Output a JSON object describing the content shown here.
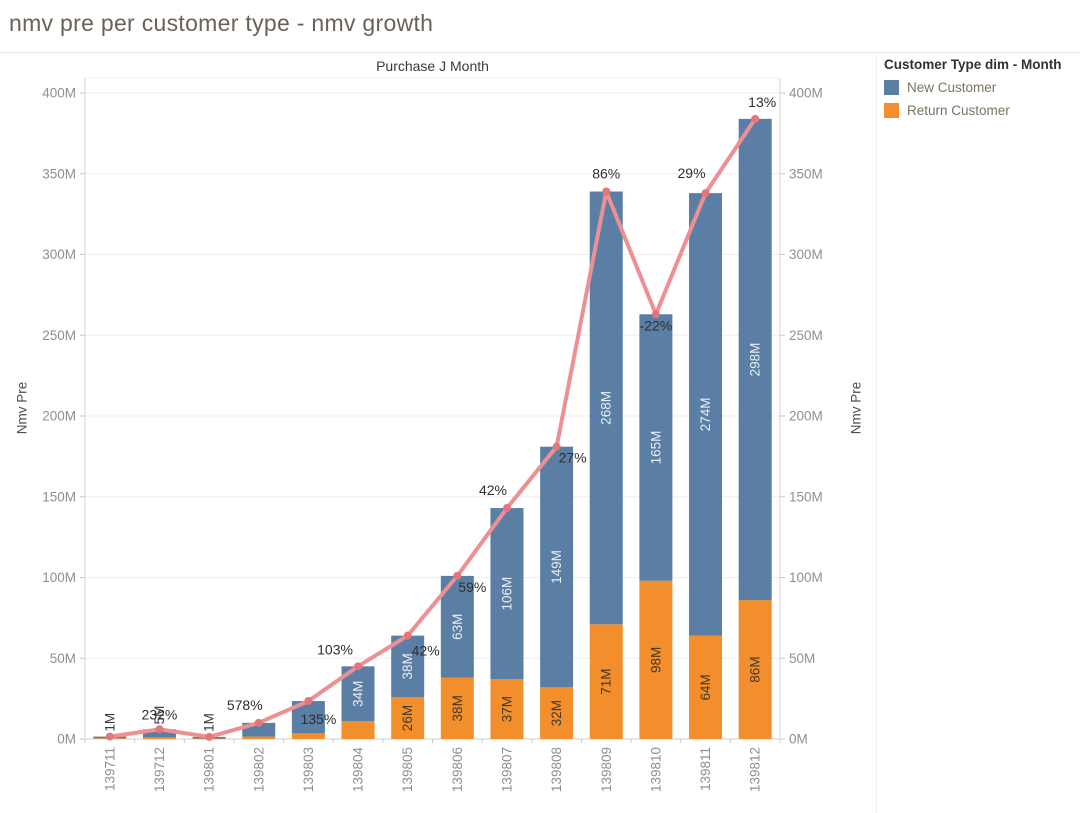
{
  "page": {
    "title": "nmv pre per customer type - nmv growth"
  },
  "legend": {
    "title": "Customer Type dim - Month",
    "items": [
      {
        "label": "New Customer",
        "color": "#5a7ea4"
      },
      {
        "label": "Return Customer",
        "color": "#f28e2b"
      }
    ]
  },
  "chart_data": {
    "type": "stacked-bar+line",
    "title": "Purchase J Month",
    "ylabel_left": "Nmv Pre",
    "ylabel_right": "Nmv Pre",
    "unit": "M",
    "ylim": [
      0,
      400
    ],
    "ytick_step": 50,
    "grid": true,
    "legend_position": "top-right",
    "categories": [
      "139711",
      "139712",
      "139801",
      "139802",
      "139803",
      "139804",
      "139805",
      "139806",
      "139807",
      "139808",
      "139809",
      "139810",
      "139811",
      "139812"
    ],
    "series": [
      {
        "name": "Return Customer",
        "color": "#f28e2b",
        "label_color": "#423a28",
        "values": [
          0.5,
          1,
          0.3,
          1.5,
          3.5,
          11,
          26,
          38,
          37,
          32,
          71,
          98,
          64,
          86
        ],
        "labels": [
          null,
          null,
          null,
          null,
          null,
          null,
          "26M",
          "38M",
          "37M",
          "32M",
          "71M",
          "98M",
          "64M",
          "86M"
        ]
      },
      {
        "name": "New Customer",
        "color": "#5a7ea4",
        "label_color": "#e9eef4",
        "values": [
          1,
          5,
          1,
          8.5,
          20,
          34,
          38,
          63,
          106,
          149,
          268,
          165,
          274,
          298
        ],
        "labels": [
          "1M",
          "5M",
          "1M",
          null,
          null,
          "34M",
          "38M",
          "63M",
          "106M",
          "149M",
          "268M",
          "165M",
          "274M",
          "298M"
        ]
      }
    ],
    "line": {
      "name": "nmv growth",
      "color": "#ee9093",
      "marker_color": "#e4757b",
      "growth_labels": [
        null,
        "232%",
        null,
        "578%",
        "135%",
        "103%",
        "42%",
        "59%",
        "42%",
        "27%",
        "86%",
        "-22%",
        "29%",
        "13%"
      ],
      "label_offsets": [
        null,
        [
          0,
          -10
        ],
        null,
        [
          -14,
          -13
        ],
        [
          10,
          23
        ],
        [
          -23,
          -12
        ],
        [
          18,
          20
        ],
        [
          15,
          16
        ],
        [
          -14,
          -13
        ],
        [
          16,
          16
        ],
        [
          0,
          -13
        ],
        [
          0,
          16
        ],
        [
          -14,
          -15
        ],
        [
          7,
          -12
        ]
      ]
    }
  }
}
